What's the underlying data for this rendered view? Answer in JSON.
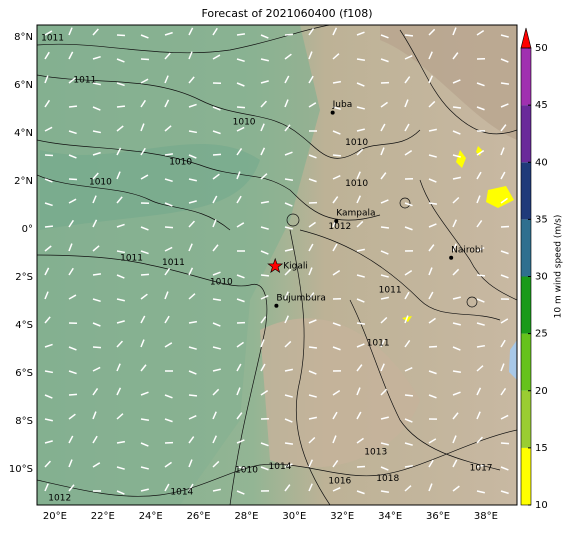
{
  "title": "Forecast of 2021060400 (f108)",
  "map": {
    "xlim": [
      19.25,
      39.3
    ],
    "ylim": [
      -11.5,
      8.5
    ],
    "xticks": [
      {
        "value": 20,
        "label": "20°E"
      },
      {
        "value": 22,
        "label": "22°E"
      },
      {
        "value": 24,
        "label": "24°E"
      },
      {
        "value": 26,
        "label": "26°E"
      },
      {
        "value": 28,
        "label": "28°E"
      },
      {
        "value": 30,
        "label": "30°E"
      },
      {
        "value": 32,
        "label": "32°E"
      },
      {
        "value": 34,
        "label": "34°E"
      },
      {
        "value": 36,
        "label": "36°E"
      },
      {
        "value": 38,
        "label": "38°E"
      }
    ],
    "yticks": [
      {
        "value": 8,
        "label": "8°N"
      },
      {
        "value": 6,
        "label": "6°N"
      },
      {
        "value": 4,
        "label": "4°N"
      },
      {
        "value": 2,
        "label": "2°N"
      },
      {
        "value": 0,
        "label": "0°"
      },
      {
        "value": -2,
        "label": "2°S"
      },
      {
        "value": -4,
        "label": "4°S"
      },
      {
        "value": -6,
        "label": "6°S"
      },
      {
        "value": -8,
        "label": "8°S"
      },
      {
        "value": -10,
        "label": "10°S"
      }
    ],
    "grid": true,
    "cities": [
      {
        "name": "Juba",
        "lon": 31.6,
        "lat": 4.85
      },
      {
        "name": "Kampala",
        "lon": 31.75,
        "lat": 0.33
      },
      {
        "name": "Nairobi",
        "lon": 36.55,
        "lat": -1.2
      },
      {
        "name": "Kigali",
        "lon": 29.2,
        "lat": -1.55,
        "marker": "star",
        "color": "#ff0000"
      },
      {
        "name": "Bujumbura",
        "lon": 29.25,
        "lat": -3.2
      }
    ],
    "contour_labels": [
      {
        "label": "1011",
        "lon": 19.9,
        "lat": 7.95
      },
      {
        "label": "1011",
        "lon": 21.25,
        "lat": 6.2
      },
      {
        "label": "1010",
        "lon": 27.9,
        "lat": 4.45
      },
      {
        "label": "1010",
        "lon": 25.25,
        "lat": 2.8
      },
      {
        "label": "1010",
        "lon": 21.9,
        "lat": 1.95
      },
      {
        "label": "1010",
        "lon": 32.6,
        "lat": 3.6
      },
      {
        "label": "1010",
        "lon": 32.6,
        "lat": 1.9
      },
      {
        "label": "1012",
        "lon": 31.9,
        "lat": 0.1
      },
      {
        "label": "1011",
        "lon": 23.2,
        "lat": -1.2
      },
      {
        "label": "1011",
        "lon": 24.95,
        "lat": -1.4
      },
      {
        "label": "1010",
        "lon": 26.95,
        "lat": -2.2
      },
      {
        "label": "1011",
        "lon": 34.0,
        "lat": -2.55
      },
      {
        "label": "1011",
        "lon": 33.5,
        "lat": -4.75
      },
      {
        "label": "1014",
        "lon": 29.4,
        "lat": -9.9
      },
      {
        "label": "1016",
        "lon": 31.9,
        "lat": -10.5
      },
      {
        "label": "1018",
        "lon": 33.9,
        "lat": -10.4
      },
      {
        "label": "1017",
        "lon": 37.8,
        "lat": -9.95
      },
      {
        "label": "1012",
        "lon": 20.2,
        "lat": -11.2
      },
      {
        "label": "1014",
        "lon": 25.3,
        "lat": -10.95
      },
      {
        "label": "1010",
        "lon": 28.0,
        "lat": -10.05
      },
      {
        "label": "1013",
        "lon": 33.4,
        "lat": -9.3
      }
    ]
  },
  "colorbar": {
    "label": "10 m wind speed (m/s)",
    "ticks": [
      10,
      15,
      20,
      25,
      30,
      35,
      40,
      45,
      50
    ],
    "colors": [
      "#ffff00",
      "#9acd32",
      "#66c21c",
      "#1a9a1a",
      "#2f6f8f",
      "#1f3a7a",
      "#6a2a9a",
      "#a030b0"
    ],
    "extend_color": "#ff0000"
  }
}
